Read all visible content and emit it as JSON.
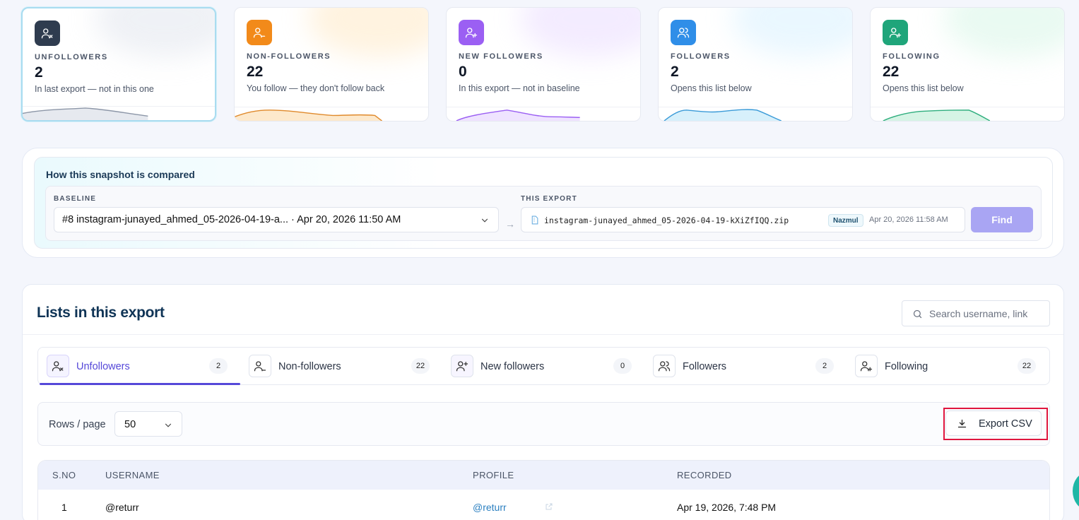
{
  "cards": [
    {
      "label": "UNFOLLOWERS",
      "value": "2",
      "sub": "In last export — not in this one",
      "icon": "user-x-icon",
      "color": "#2f3c4f",
      "spark": "#8d97a8",
      "glow": "#e2e6ee"
    },
    {
      "label": "NON-FOLLOWERS",
      "value": "22",
      "sub": "You follow — they don't follow back",
      "icon": "user-minus-icon",
      "color": "#f28a1a",
      "spark": "#e08a2c",
      "glow": "#ffe9c6"
    },
    {
      "label": "NEW FOLLOWERS",
      "value": "0",
      "sub": "In this export — not in baseline",
      "icon": "user-plus-icon",
      "color": "#9b5ff3",
      "spark": "#9b5ff3",
      "glow": "#eadcff"
    },
    {
      "label": "FOLLOWERS",
      "value": "2",
      "sub": "Opens this list below",
      "icon": "users-icon",
      "color": "#2f8ee8",
      "spark": "#3b9bd8",
      "glow": "#d9f1ff"
    },
    {
      "label": "FOLLOWING",
      "value": "22",
      "sub": "Opens this list below",
      "icon": "user-check-icon",
      "color": "#1fa57a",
      "spark": "#2fae7e",
      "glow": "#d8f6e7"
    }
  ],
  "compare": {
    "title": "How this snapshot is compared",
    "baseline_caption": "BASELINE",
    "baseline_value": "#8 instagram-junayed_ahmed_05-2026-04-19-a... · Apr 20, 2026 11:50 AM",
    "export_caption": "THIS EXPORT",
    "export_file": "instagram-junayed_ahmed_05-2026-04-19-kXiZfIQQ.zip",
    "export_tag": "Nazmul",
    "export_date": "Apr 20, 2026 11:58 AM",
    "find_label": "Find"
  },
  "lists": {
    "title": "Lists in this export",
    "search_placeholder": "Search username, link",
    "tabs": [
      {
        "label": "Unfollowers",
        "count": "2",
        "icon": "user-x-icon"
      },
      {
        "label": "Non-followers",
        "count": "22",
        "icon": "user-minus-icon"
      },
      {
        "label": "New followers",
        "count": "0",
        "icon": "user-plus-icon"
      },
      {
        "label": "Followers",
        "count": "2",
        "icon": "users-icon"
      },
      {
        "label": "Following",
        "count": "22",
        "icon": "user-check-icon"
      }
    ],
    "rows_label": "Rows / page",
    "rows_value": "50",
    "export_label": "Export CSV",
    "columns": [
      "S.NO",
      "USERNAME",
      "PROFILE",
      "RECORDED"
    ],
    "rows": [
      {
        "sno": "1",
        "username": "@returr",
        "profile": "@returr",
        "recorded": "Apr 19, 2026, 7:48 PM"
      }
    ]
  },
  "accent": "#5548d9",
  "highlight": "#e0163e"
}
